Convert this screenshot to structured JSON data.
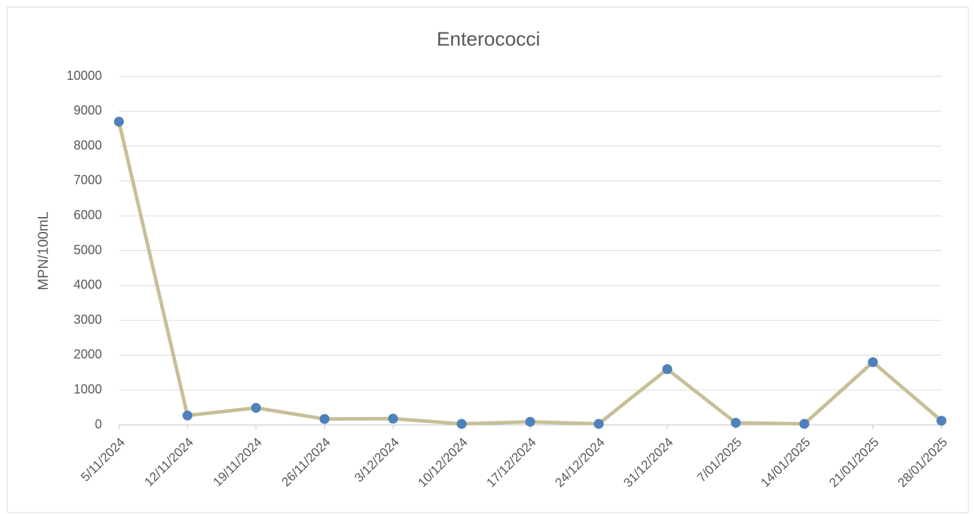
{
  "chart_data": {
    "type": "line",
    "title": "Enterococci",
    "y_label": "MPN/100mL",
    "categories": [
      "5/11/2024",
      "12/11/2024",
      "19/11/2024",
      "26/11/2024",
      "3/12/2024",
      "10/12/2024",
      "17/12/2024",
      "24/12/2024",
      "31/12/2024",
      "7/01/2025",
      "14/01/2025",
      "21/01/2025",
      "28/01/2025"
    ],
    "values": [
      8700,
      270,
      490,
      170,
      180,
      30,
      90,
      30,
      1600,
      60,
      30,
      1800,
      120
    ],
    "color": "#c8bf97",
    "marker_color": "#4f81bd",
    "ylim": [
      0,
      10000
    ],
    "yticks": [
      0,
      1000,
      2000,
      3000,
      4000,
      5000,
      6000,
      7000,
      8000,
      9000,
      10000
    ],
    "grid": true
  }
}
